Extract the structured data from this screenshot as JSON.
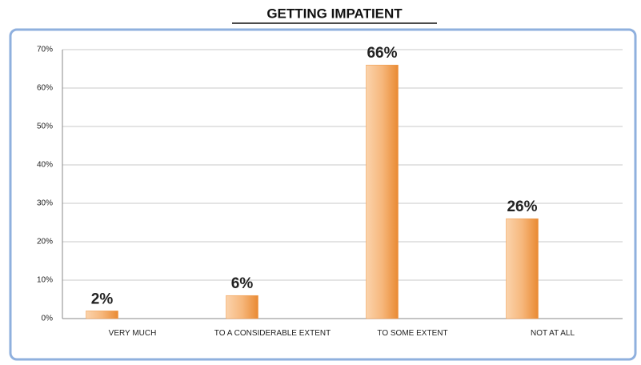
{
  "chart_data": {
    "type": "bar",
    "title": "GETTING IMPATIENT",
    "categories": [
      "VERY MUCH",
      "TO A CONSIDERABLE EXTENT",
      "TO SOME EXTENT",
      "NOT AT ALL"
    ],
    "values": [
      2,
      6,
      66,
      26
    ],
    "value_labels": [
      "2%",
      "6%",
      "66%",
      "26%"
    ],
    "color": "#ef9441",
    "ylim": [
      0,
      70
    ],
    "yticks": [
      {
        "value": 0,
        "label": "0%"
      },
      {
        "value": 10,
        "label": "10%"
      },
      {
        "value": 20,
        "label": "20%"
      },
      {
        "value": 30,
        "label": "30%"
      },
      {
        "value": 40,
        "label": "40%"
      },
      {
        "value": 50,
        "label": "50%"
      },
      {
        "value": 60,
        "label": "60%"
      },
      {
        "value": 70,
        "label": "70%"
      }
    ],
    "grid": true
  }
}
